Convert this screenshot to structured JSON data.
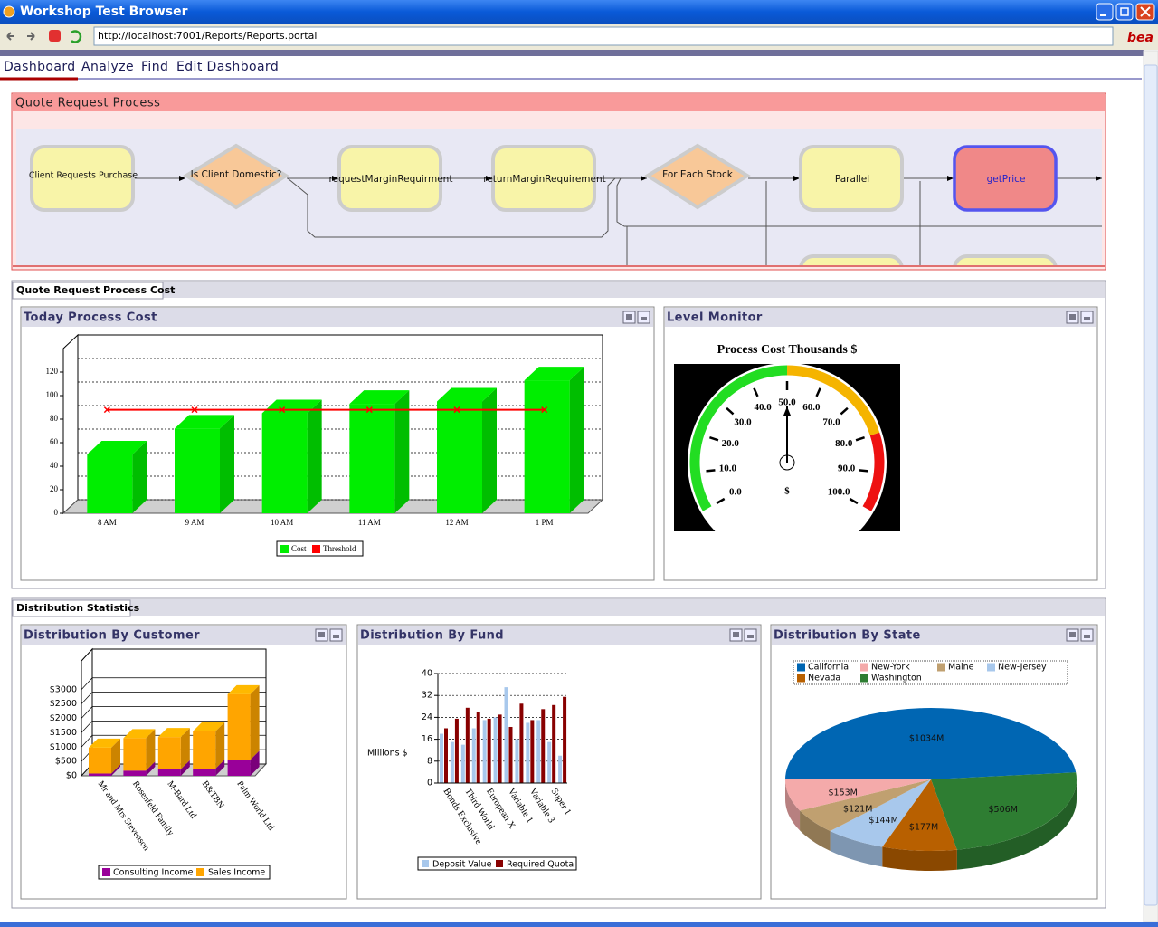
{
  "window": {
    "title": "Workshop Test Browser",
    "url": "http://localhost:7001/Reports/Reports.portal",
    "logo": "bea"
  },
  "nav": [
    "Dashboard",
    "Analyze",
    "Find",
    "Edit Dashboard"
  ],
  "process": {
    "title": "Quote Request Process",
    "nodes": [
      "Client Requests Purchase",
      "Is Client Domestic?",
      "requestMarginRequirment",
      "returnMarginRequirement",
      "For Each Stock",
      "Parallel",
      "getPrice"
    ]
  },
  "cost_tab": "Quote Request Process Cost",
  "today_cost": {
    "title": "Today Process Cost",
    "chart": {
      "type": "bar3d",
      "categories": [
        "8 AM",
        "9 AM",
        "10 AM",
        "11 AM",
        "12 AM",
        "1 PM"
      ],
      "series": [
        {
          "name": "Cost",
          "color": "#00ee00",
          "values": [
            50,
            72,
            85,
            93,
            95,
            113
          ]
        },
        {
          "name": "Threshold",
          "color": "#ff0000",
          "type": "line",
          "values": [
            88,
            88,
            88,
            88,
            88,
            88
          ]
        }
      ],
      "ylim": [
        0,
        140
      ],
      "yticks": [
        0,
        20,
        40,
        60,
        80,
        100,
        120
      ],
      "grid": true
    }
  },
  "level_monitor": {
    "title": "Level Monitor",
    "chart": {
      "type": "gauge",
      "title": "Process Cost Thousands $",
      "unit": "$",
      "value": 50,
      "ticks": [
        {
          "value": 0,
          "label": "0.0"
        },
        {
          "value": 10,
          "label": "10.0"
        },
        {
          "value": 20,
          "label": "20.0"
        },
        {
          "value": 30,
          "label": "30.0"
        },
        {
          "value": 40,
          "label": "40.0"
        },
        {
          "value": 50,
          "label": "50.0"
        },
        {
          "value": 60,
          "label": "60.0"
        },
        {
          "value": 70,
          "label": "70.0"
        },
        {
          "value": 80,
          "label": "80.0"
        },
        {
          "value": 90,
          "label": "90.0"
        },
        {
          "value": 100,
          "label": "100.0"
        }
      ],
      "bands": [
        {
          "from": 0,
          "to": 50,
          "color": "#22dd22"
        },
        {
          "from": 50,
          "to": 80,
          "color": "#f5b400"
        },
        {
          "from": 80,
          "to": 100,
          "color": "#ee1111"
        }
      ]
    }
  },
  "dist_tab": "Distribution Statistics",
  "by_customer": {
    "title": "Distribution By Customer",
    "chart": {
      "type": "stacked_bar3d",
      "categories": [
        "Mr and Mrs Stevenson",
        "Rosenfeld Family",
        "M-Bard Ltd",
        "B&TBN",
        "Palm World Ltd"
      ],
      "series": [
        {
          "name": "Consulting Income",
          "color": "#990099",
          "values": [
            80,
            180,
            230,
            250,
            560
          ]
        },
        {
          "name": "Sales Income",
          "color": "#ffa500",
          "values": [
            900,
            1130,
            1120,
            1300,
            2280
          ]
        }
      ],
      "ylim": [
        0,
        4000
      ],
      "yticks": [
        {
          "value": 0,
          "label": "$0"
        },
        {
          "value": 500,
          "label": "$500"
        },
        {
          "value": 1000,
          "label": "$1000"
        },
        {
          "value": 1500,
          "label": "$1500"
        },
        {
          "value": 2000,
          "label": "$2000"
        },
        {
          "value": 2500,
          "label": "$2500"
        },
        {
          "value": 3000,
          "label": "$3000"
        }
      ],
      "grid": true
    }
  },
  "by_fund": {
    "title": "Distribution By Fund",
    "chart": {
      "type": "bar",
      "ylabel": "Millions $",
      "categories": [
        "Bonds Exclusive",
        null,
        "Third World",
        null,
        "European X",
        null,
        "Variable 1",
        null,
        "Variable 3",
        null,
        "Super 1",
        null
      ],
      "series": [
        {
          "name": "Deposit Value",
          "color": "#a8c8ec",
          "values": [
            18,
            15,
            14,
            20,
            23,
            24,
            35,
            16,
            22,
            23,
            15,
            10
          ]
        },
        {
          "name": "Required Quota",
          "color": "#880000",
          "values": [
            20,
            23.5,
            27.5,
            26,
            23.5,
            25,
            20.5,
            29,
            23,
            27,
            28.5,
            31.5
          ]
        }
      ],
      "ylim": [
        0,
        40
      ],
      "yticks": [
        0,
        8,
        16,
        24,
        32,
        40
      ],
      "grid": true
    }
  },
  "by_state": {
    "title": "Distribution By State",
    "chart": {
      "type": "pie3d",
      "categories": [
        "California",
        "New-York",
        "Maine",
        "New-Jersey",
        "Nevada",
        "Washington"
      ],
      "values": [
        1034,
        153,
        121,
        144,
        177,
        506
      ],
      "value_labels": [
        "$1034M",
        "$153M",
        "$121M",
        "$144M",
        "$177M",
        "$506M"
      ],
      "colors": [
        "#0066b3",
        "#f4aaaa",
        "#c0a070",
        "#a8c8ec",
        "#b86000",
        "#2e7d32"
      ],
      "slice_order": [
        "California",
        "Washington",
        "Nevada",
        "New-Jersey",
        "Maine",
        "New-York"
      ]
    }
  }
}
